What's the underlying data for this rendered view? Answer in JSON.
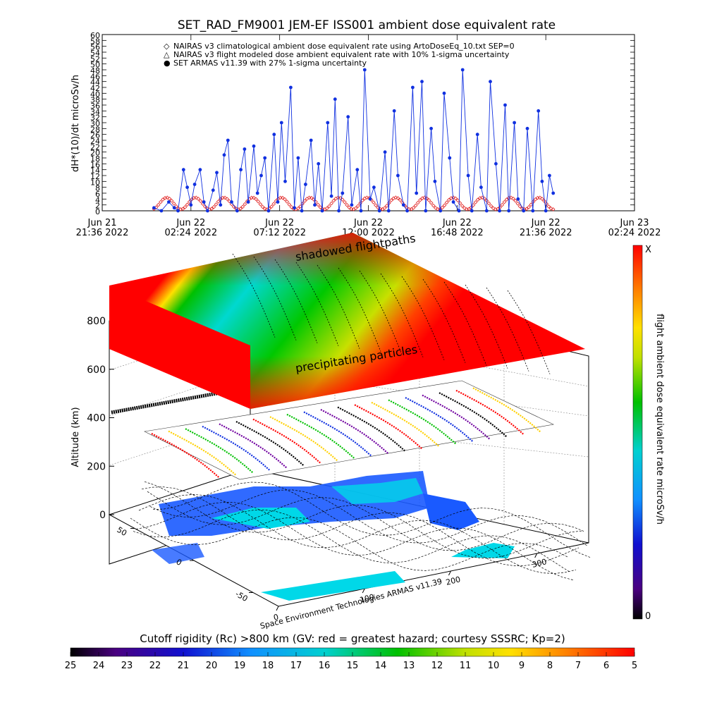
{
  "chart_data": [
    {
      "type": "line",
      "title": "SET_RAD_FM9001  JEM-EF ISS001 ambient dose equivalent rate",
      "ylabel": "dH*(10)/dt microSv/h",
      "xlabel": "",
      "ylim": [
        0,
        60
      ],
      "yticks": [
        "0",
        "2",
        "4",
        "6",
        "8",
        "10",
        "12",
        "14",
        "16",
        "18",
        "20",
        "22",
        "24",
        "26",
        "28",
        "30",
        "32",
        "34",
        "36",
        "38",
        "40",
        "42",
        "44",
        "46",
        "48",
        "50",
        "52",
        "54",
        "56",
        "58",
        "60"
      ],
      "xticks": [
        {
          "l1": "Jun 21",
          "l2": "21:36 2022"
        },
        {
          "l1": "Jun 22",
          "l2": "02:24 2022"
        },
        {
          "l1": "Jun 22",
          "l2": "07:12 2022"
        },
        {
          "l1": "Jun 22",
          "l2": "12:00 2022"
        },
        {
          "l1": "Jun 22",
          "l2": "16:48 2022"
        },
        {
          "l1": "Jun 22",
          "l2": "21:36 2022"
        },
        {
          "l1": "Jun 23",
          "l2": "02:24 2022"
        }
      ],
      "legend_position": "top-left",
      "legend": [
        {
          "symbol": "◇",
          "color": "#e02020",
          "text": "NAIRAS v3 climatological ambient dose equivalent rate using ArtoDoseEq_10.txt SEP=0"
        },
        {
          "symbol": "△",
          "color": "#000000",
          "text": "NAIRAS v3 flight modeled dose ambient equivalent rate with 10% 1-sigma uncertainty"
        },
        {
          "symbol": "●",
          "color": "#1030e0",
          "text": "SET ARMAS v11.39 with 27% 1-sigma uncertainty"
        }
      ],
      "series": [
        {
          "name": "SET ARMAS v11.39 with 27% 1-sigma uncertainty",
          "color": "#1030e0",
          "x": [
            2.8,
            3.2,
            3.6,
            3.9,
            4.1,
            4.4,
            4.6,
            4.8,
            5.0,
            5.3,
            5.5,
            5.7,
            6.0,
            6.2,
            6.4,
            6.6,
            6.8,
            7.0,
            7.3,
            7.5,
            7.7,
            7.9,
            8.2,
            8.4,
            8.6,
            8.8,
            9.0,
            9.3,
            9.5,
            9.7,
            9.9,
            10.2,
            10.4,
            10.6,
            10.8,
            11.0,
            11.3,
            11.5,
            11.7,
            11.9,
            12.2,
            12.4,
            12.6,
            12.8,
            13.0,
            13.3,
            13.5,
            13.8,
            14.0,
            14.2,
            14.5,
            14.7,
            15.0,
            15.3,
            15.5,
            15.8,
            16.0,
            16.3,
            16.5,
            16.8,
            17.0,
            17.3,
            17.5,
            17.8,
            18.0,
            18.3,
            18.5,
            18.8,
            19.0,
            19.3,
            19.5,
            19.8,
            20.0,
            20.3,
            20.5,
            20.8,
            21.0,
            21.3,
            21.5,
            21.8,
            22.0,
            22.3,
            22.5,
            22.8,
            23.0,
            23.3,
            23.6,
            23.8,
            24.0,
            24.2,
            24.4
          ],
          "y": [
            1,
            0,
            3,
            1,
            0,
            14,
            8,
            2,
            9,
            14,
            3,
            0,
            7,
            13,
            2,
            19,
            24,
            3,
            0,
            14,
            21,
            3,
            22,
            6,
            12,
            18,
            0,
            26,
            3,
            30,
            10,
            42,
            1,
            18,
            0,
            9,
            24,
            2,
            16,
            0,
            30,
            5,
            38,
            0,
            6,
            32,
            2,
            14,
            0,
            48,
            4,
            8,
            0,
            20,
            0,
            34,
            12,
            2,
            0,
            42,
            6,
            44,
            0,
            28,
            10,
            0,
            40,
            18,
            3,
            0,
            48,
            12,
            0,
            26,
            8,
            0,
            44,
            16,
            0,
            36,
            0,
            30,
            4,
            0,
            28,
            0,
            34,
            10,
            0,
            12,
            6
          ]
        },
        {
          "name": "NAIRAS v3 climatological ambient dose equivalent rate using ArtoDoseEq_10.txt SEP=0",
          "color": "#e02020",
          "amplitude": [
            0.5,
            4.5
          ],
          "period_hours": 1.55
        }
      ]
    },
    {
      "type": "heatmap",
      "ylabel": "Altitude (km)",
      "zticks": [
        "0",
        "200",
        "400",
        "600",
        "800"
      ],
      "lon_ticks": [
        "0",
        "100",
        "200",
        "300"
      ],
      "lat_ticks": [
        "50",
        "0",
        "-50"
      ],
      "layer_labels": [
        "shadowed flightpaths",
        "precipitating particles"
      ],
      "colorbar_label": "flight ambient dose equivalent rate microSv/h",
      "colorbar_top": "X",
      "colorbar_bottom": "0",
      "credit": "Space Environment Technologies ARMAS v11.39"
    },
    {
      "type": "heatmap",
      "title": "Cutoff rigidity (Rc) >800 km (GV: red = greatest hazard; courtesy SSSRC; Kp=2)",
      "ticks": [
        "25",
        "24",
        "23",
        "22",
        "21",
        "20",
        "19",
        "18",
        "17",
        "16",
        "15",
        "14",
        "13",
        "12",
        "11",
        "10",
        "9",
        "8",
        "7",
        "6",
        "5"
      ]
    }
  ]
}
